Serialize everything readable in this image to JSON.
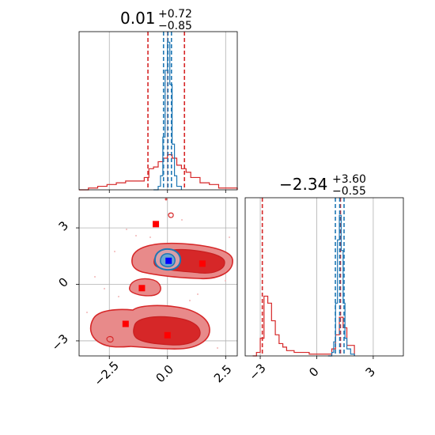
{
  "colors": {
    "primary": "#d62728",
    "secondary": "#1f77b4",
    "truth_primary": "#ff0000",
    "truth_secondary": "#0000ff",
    "grid": "#b0b0b0",
    "fill_1sigma": "#d62728",
    "fill_2sigma": "#e88a8a"
  },
  "chart_data": [
    {
      "type": "histogram",
      "panel": "marginal-x",
      "title": {
        "value": "0.01",
        "upper": "+0.72",
        "lower": "−0.85"
      },
      "xlim": [
        -3.8,
        3.0
      ],
      "grid": true,
      "x_ticks": [
        -2.5,
        0.0,
        2.5
      ],
      "series": [
        {
          "color": "#d62728",
          "quantile_lines": [
            -0.84,
            0.01,
            0.73
          ],
          "x": [
            -3.8,
            -3.4,
            -3.0,
            -2.6,
            -2.2,
            -1.8,
            -1.4,
            -1.0,
            -0.8,
            -0.6,
            -0.4,
            -0.2,
            0.0,
            0.2,
            0.4,
            0.6,
            0.8,
            1.0,
            1.4,
            1.8,
            2.2,
            2.6,
            3.0
          ],
          "density": [
            0.0,
            0.01,
            0.02,
            0.03,
            0.04,
            0.05,
            0.05,
            0.07,
            0.12,
            0.13,
            0.16,
            0.18,
            0.2,
            0.18,
            0.14,
            0.12,
            0.1,
            0.07,
            0.04,
            0.03,
            0.01,
            0.01,
            0.0
          ]
        },
        {
          "color": "#1f77b4",
          "quantile_lines": [
            -0.17,
            0.02,
            0.17
          ],
          "x": [
            -0.6,
            -0.4,
            -0.3,
            -0.2,
            -0.1,
            0.0,
            0.1,
            0.2,
            0.3,
            0.4,
            0.6
          ],
          "density": [
            0.0,
            0.02,
            0.08,
            0.3,
            0.68,
            0.84,
            0.6,
            0.26,
            0.08,
            0.02,
            0.0
          ]
        }
      ]
    },
    {
      "type": "contour",
      "panel": "joint",
      "xlim": [
        -3.8,
        3.0
      ],
      "ylim": [
        -3.8,
        4.6
      ],
      "grid": true,
      "x_ticks": [
        -2.5,
        0.0,
        2.5
      ],
      "y_ticks": [
        -3,
        0,
        3
      ],
      "truth_points_red": [
        {
          "x": -0.5,
          "y": 3.2
        },
        {
          "x": 1.5,
          "y": 1.1
        },
        {
          "x": -1.1,
          "y": -0.2
        },
        {
          "x": -1.8,
          "y": -2.1
        },
        {
          "x": 0.0,
          "y": -2.7
        }
      ],
      "truth_points_blue": [
        {
          "x": 0.05,
          "y": 1.25
        }
      ]
    },
    {
      "type": "histogram",
      "panel": "marginal-y",
      "title": {
        "value": "−2.34",
        "upper": "+3.60",
        "lower": "−0.55"
      },
      "xlim": [
        -3.8,
        4.6
      ],
      "grid": true,
      "x_ticks": [
        -3,
        0,
        3
      ],
      "series": [
        {
          "color": "#d62728",
          "quantile_lines": [
            -2.89,
            1.26
          ],
          "x": [
            -3.4,
            -3.2,
            -3.0,
            -2.8,
            -2.6,
            -2.4,
            -2.2,
            -2.0,
            -1.8,
            -1.6,
            -1.2,
            -0.8,
            -0.4,
            0.0,
            0.4,
            0.8,
            1.0,
            1.2,
            1.4,
            1.6,
            2.0
          ],
          "density": [
            0.0,
            0.02,
            0.1,
            0.34,
            0.3,
            0.2,
            0.12,
            0.07,
            0.05,
            0.03,
            0.02,
            0.02,
            0.01,
            0.01,
            0.01,
            0.04,
            0.12,
            0.22,
            0.16,
            0.06,
            0.0
          ]
        },
        {
          "color": "#1f77b4",
          "quantile_lines": [
            0.99,
            1.22,
            1.45
          ],
          "x": [
            0.6,
            0.8,
            0.9,
            1.0,
            1.1,
            1.2,
            1.3,
            1.4,
            1.5,
            1.6,
            1.8,
            2.0
          ],
          "density": [
            0.0,
            0.02,
            0.08,
            0.3,
            0.66,
            0.8,
            0.6,
            0.3,
            0.1,
            0.04,
            0.01,
            0.0
          ]
        }
      ]
    }
  ]
}
